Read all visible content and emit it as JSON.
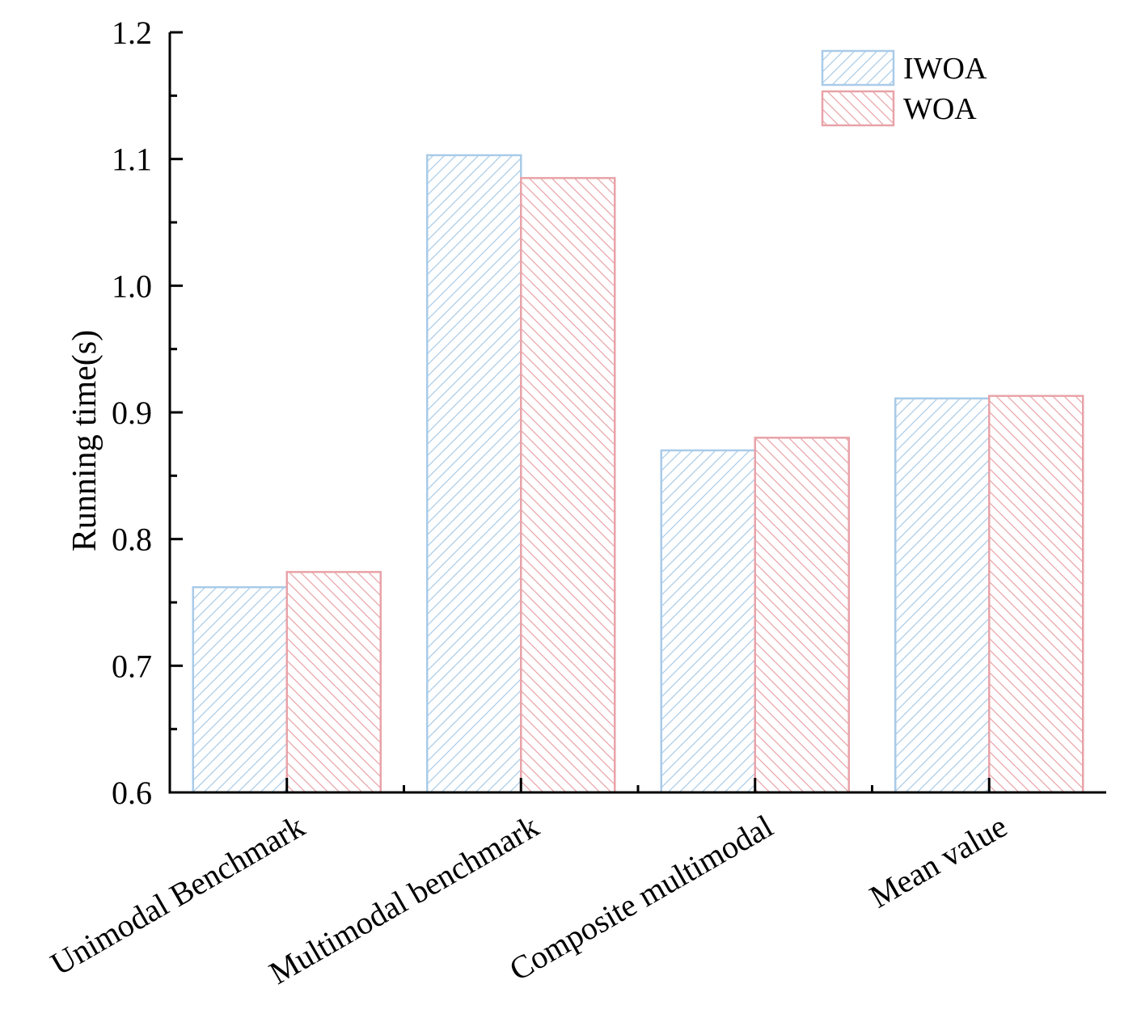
{
  "chart_data": {
    "type": "bar",
    "title": "",
    "xlabel": "",
    "ylabel": "Running time(s)",
    "ylim": [
      0.6,
      1.2
    ],
    "yticks": [
      "0.6",
      "0.7",
      "0.8",
      "0.9",
      "1.0",
      "1.1",
      "1.2"
    ],
    "categories": [
      "Unimodal Benchmark",
      "Multimodal benchmark",
      "Composite multimodal",
      "Mean value"
    ],
    "series": [
      {
        "name": "IWOA",
        "values": [
          0.762,
          1.103,
          0.87,
          0.911
        ],
        "color": "#a9cbe8"
      },
      {
        "name": "WOA",
        "values": [
          0.774,
          1.085,
          0.88,
          0.913
        ],
        "color": "#e8a3a8"
      }
    ],
    "grid": false,
    "legend_position": "top-right"
  }
}
